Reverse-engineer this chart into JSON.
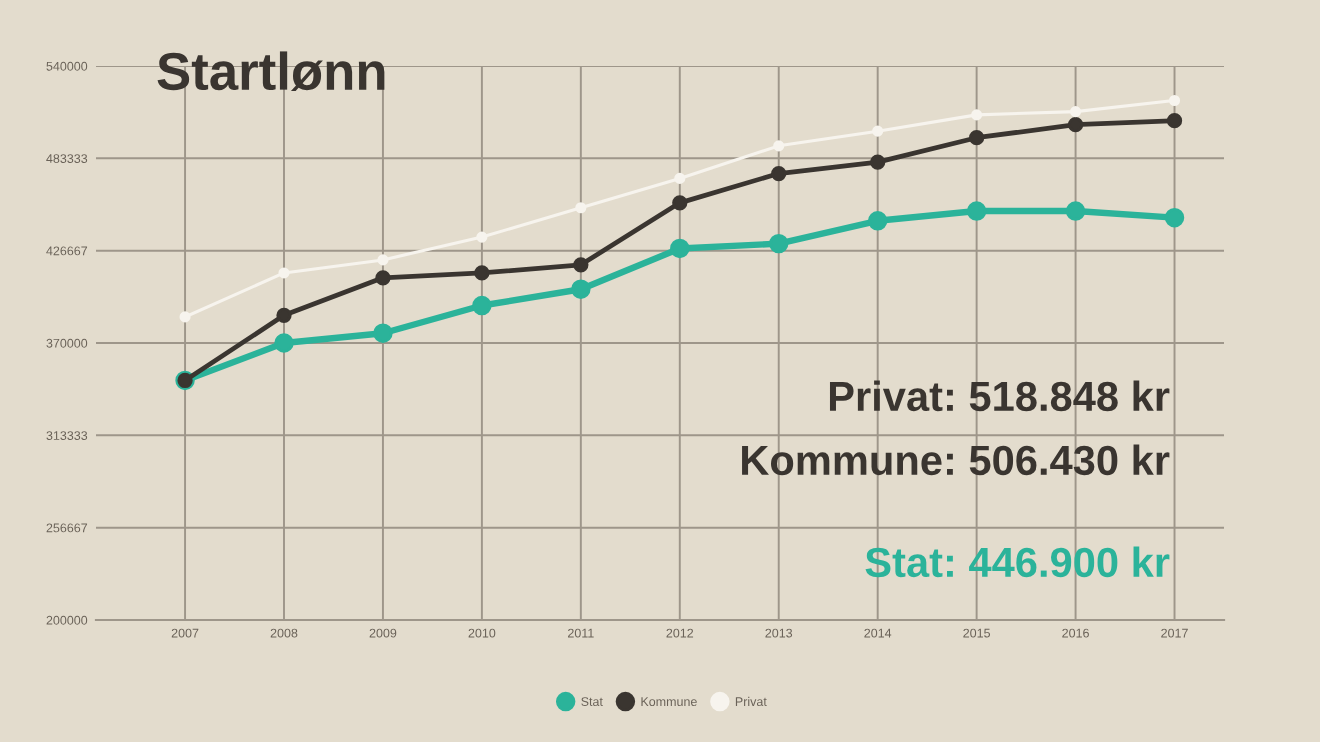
{
  "chart_data": {
    "type": "line",
    "title": "Startlønn",
    "x": [
      2007,
      2008,
      2009,
      2010,
      2011,
      2012,
      2013,
      2014,
      2015,
      2016,
      2017
    ],
    "series": [
      {
        "name": "Stat",
        "color": "#2bb39a",
        "values": [
          347000,
          370000,
          376000,
          393000,
          403000,
          428000,
          431000,
          445000,
          451000,
          451000,
          446900
        ]
      },
      {
        "name": "Kommune",
        "color": "#3a3530",
        "values": [
          347000,
          387000,
          410000,
          413000,
          418000,
          456000,
          474000,
          481000,
          496000,
          504000,
          506430
        ]
      },
      {
        "name": "Privat",
        "color": "#f7f4ee",
        "values": [
          386000,
          413000,
          421000,
          435000,
          453000,
          471000,
          491000,
          500000,
          510000,
          512000,
          518848
        ]
      }
    ],
    "xlim": [
      2006.1,
      2017.5
    ],
    "xticks": [
      2007,
      2008,
      2009,
      2010,
      2011,
      2012,
      2013,
      2014,
      2015,
      2016,
      2017
    ],
    "ylim": [
      200000,
      540000
    ],
    "yticks": [
      200000,
      256667,
      313333,
      370000,
      426667,
      483333,
      540000
    ],
    "grid": true,
    "legend": "bottom",
    "marker": "circle",
    "line_style": "solid",
    "annotations": [
      "Privat: 518.848 kr",
      "Kommune: 506.430 kr",
      "Stat: 446.900 kr"
    ]
  }
}
